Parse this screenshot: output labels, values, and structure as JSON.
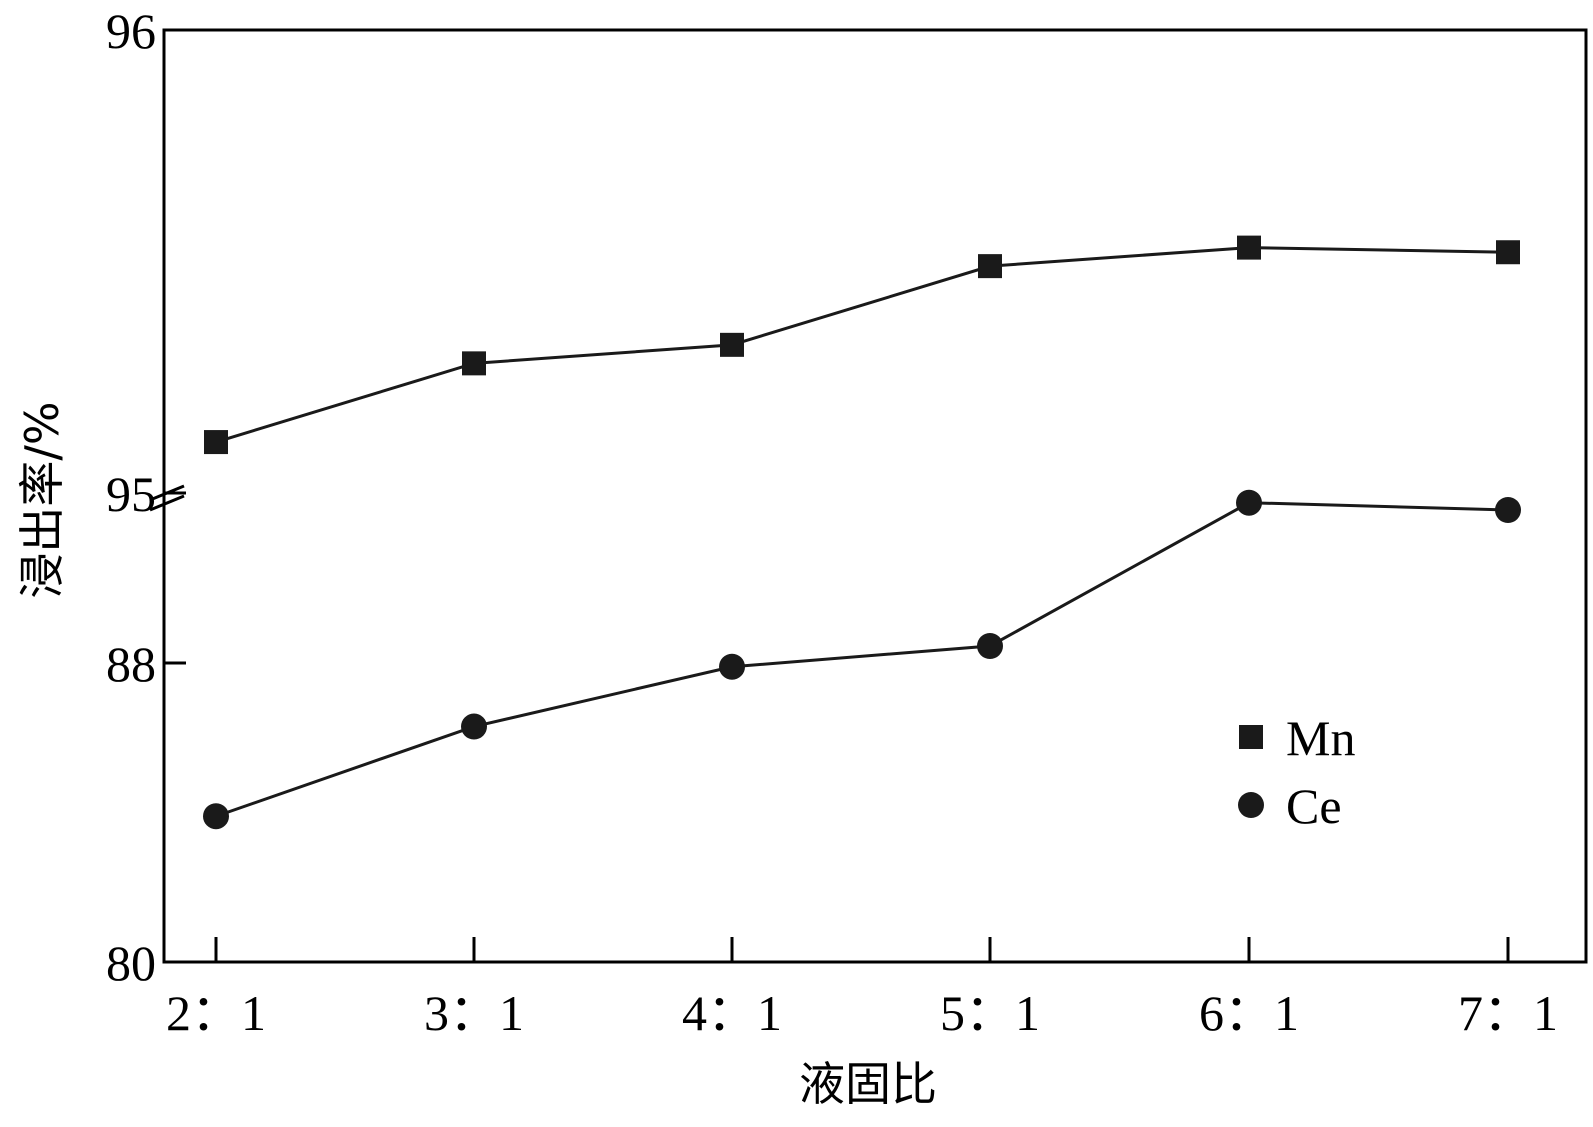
{
  "chart_data": {
    "type": "line",
    "categories": [
      "2：1",
      "3：1",
      "4：1",
      "5：1",
      "6：1",
      "7：1"
    ],
    "xlabel": "液固比",
    "ylabel": "浸出率/%",
    "y_axis_break": true,
    "y_segments": [
      {
        "ylim": [
          80,
          88
        ],
        "ticks": [
          80,
          88
        ]
      },
      {
        "ylim": [
          88,
          95
        ],
        "ticks": [
          88,
          95
        ]
      },
      {
        "ylim": [
          95,
          96
        ],
        "ticks": [
          95,
          96
        ]
      }
    ],
    "series": [
      {
        "name": "Mn",
        "marker": "square",
        "color": "#1a1a1a",
        "values": [
          95.11,
          95.28,
          95.32,
          95.49,
          95.53,
          95.52
        ]
      },
      {
        "name": "Ce",
        "marker": "circle",
        "color": "#1a1a1a",
        "values": [
          83.9,
          86.3,
          87.9,
          88.7,
          94.6,
          94.3
        ]
      }
    ],
    "legend_position": "bottom-right",
    "grid": false
  }
}
